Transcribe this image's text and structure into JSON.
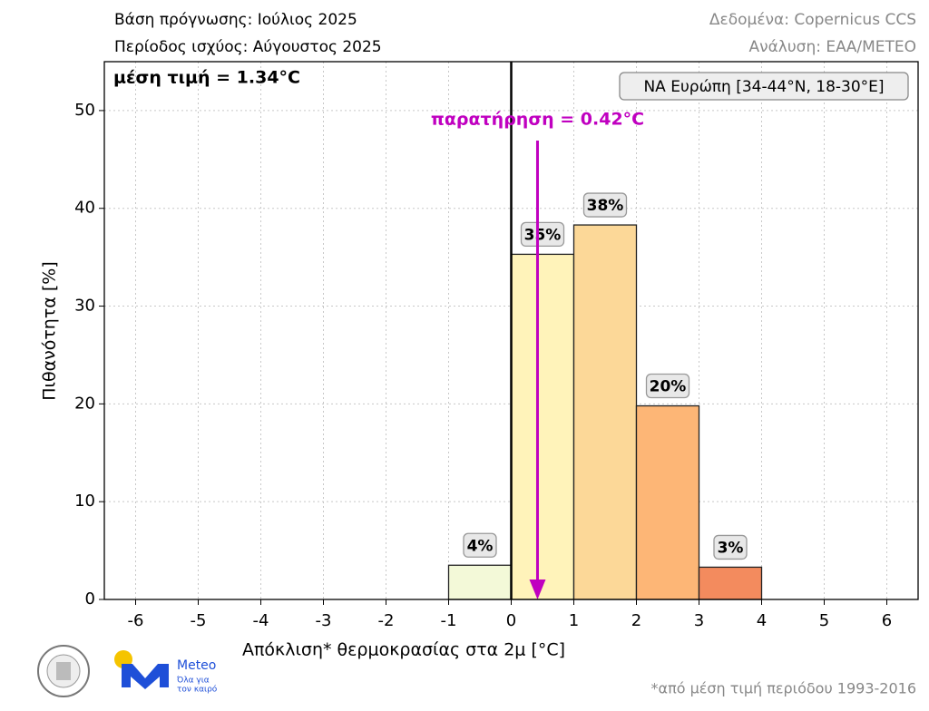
{
  "chart_data": {
    "type": "histogram",
    "header_left": [
      "Βάση πρόγνωσης: Ιούλιος 2025",
      "Περίοδος ισχύος: Αύγουστος 2025"
    ],
    "header_right": [
      "Δεδομένα: Copernicus CCS",
      "Ανάλυση: ΕΑΑ/METEO"
    ],
    "mean_annotation": "μέση τιμή = 1.34°C",
    "region_label": "ΝΑ Ευρώπη [34-44°N, 18-30°E]",
    "observation": {
      "label": "παρατήρηση = 0.42°C",
      "value": 0.42,
      "color": "#c000c0"
    },
    "bins": [
      -1,
      0,
      1,
      2,
      3,
      4
    ],
    "values": [
      3.5,
      35.3,
      38.3,
      19.8,
      3.3
    ],
    "value_labels": [
      "4%",
      "35%",
      "38%",
      "20%",
      "3%"
    ],
    "colors": [
      "#f3f9d8",
      "#fff3ba",
      "#fcd898",
      "#fdb676",
      "#f38b5e"
    ],
    "xlim": [
      -6.5,
      6.5
    ],
    "xticks": [
      -6,
      -5,
      -4,
      -3,
      -2,
      -1,
      0,
      1,
      2,
      3,
      4,
      5,
      6
    ],
    "ylim": [
      0,
      55
    ],
    "yticks": [
      0,
      10,
      20,
      30,
      40,
      50
    ],
    "grid": true,
    "xlabel": "Απόκλιση* θερμοκρασίας στα 2μ [°C]",
    "ylabel": "Πιθανότητα [%]",
    "footnote": "*από μέση τιμή περιόδου 1993-2016",
    "logo": {
      "name": "Meteo",
      "tagline": [
        "Όλα για",
        "τον καιρό"
      ]
    }
  }
}
